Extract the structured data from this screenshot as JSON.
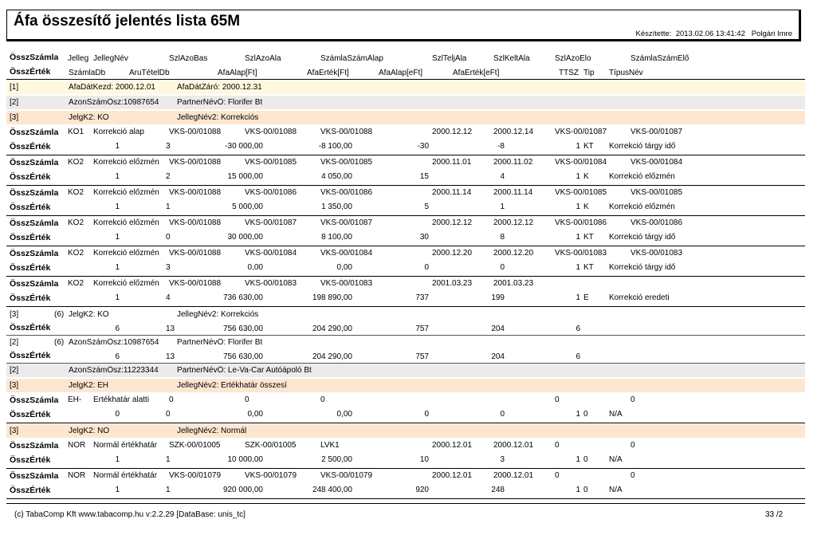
{
  "report": {
    "title": "Áfa összesítő jelentés lista 65M",
    "made_by_label": "Készítette:",
    "made_date": "2013.02.06 13:41:42",
    "made_user": "Polgári Imre"
  },
  "header_row1": {
    "label": "ÖsszSzámla",
    "cols": [
      "Jelleg",
      "JellegNév",
      "SzlAzoBas",
      "SzlAzoAla",
      "SzámlaSzámAlap",
      "SzlTeljAla",
      "SzlKeltAla",
      "SzlAzoElo",
      "SzámlaSzámElő"
    ]
  },
  "header_row2": {
    "label": "ÖsszÉrték",
    "cols": [
      "SzámlaDb",
      "ÁruTételDb",
      "ÁfaAlap[Ft]",
      "ÁfaÉrték[Ft]",
      "ÁfaAlap[eFt]",
      "ÁfaÉrték[eFt]",
      "TTSZ",
      "Tip",
      "TípusNév"
    ]
  },
  "rows": [
    {
      "type": "band",
      "style": "b1",
      "level": "[1]",
      "parts": [
        "ÁfaDátKezd: 2000.12.01",
        "ÁfaDátZáró: 2000.12.31"
      ]
    },
    {
      "type": "band",
      "style": "b2",
      "level": "[2]",
      "parts": [
        "AzonSzámÖsz:10987654",
        "PartnerNévÖ: Florifer Bt"
      ]
    },
    {
      "type": "band",
      "style": "b3",
      "level": "[3]",
      "parts": [
        "JelgK2:  KO",
        "JellegNév2:  Korrekciós"
      ]
    },
    {
      "type": "rec",
      "a": {
        "label": "ÖsszSzámla",
        "jelleg": "KO1",
        "nev": "Korrekció alap",
        "bas": "VKS-00/01088",
        "ala": "VKS-00/01088",
        "alap": "VKS-00/01088",
        "telj": "2000.12.12",
        "kelt": "2000.12.14",
        "elo": "VKS-00/01087",
        "szamelo": "VKS-00/01087"
      },
      "b": {
        "label": "ÖsszÉrték",
        "db": "1",
        "tdb": "3",
        "alapft": "-30 000,00",
        "ertft": "-8 100,00",
        "alapeft": "-30",
        "erteft": "-8",
        "ttsz": "1",
        "tip": "KT",
        "tipnev": "Korrekció tárgy idő"
      }
    },
    {
      "type": "rec",
      "a": {
        "label": "ÖsszSzámla",
        "jelleg": "KO2",
        "nev": "Korrekció előzmén",
        "bas": "VKS-00/01088",
        "ala": "VKS-00/01085",
        "alap": "VKS-00/01085",
        "telj": "2000.11.01",
        "kelt": "2000.11.02",
        "elo": "VKS-00/01084",
        "szamelo": "VKS-00/01084"
      },
      "b": {
        "label": "ÖsszÉrték",
        "db": "1",
        "tdb": "2",
        "alapft": "15 000,00",
        "ertft": "4 050,00",
        "alapeft": "15",
        "erteft": "4",
        "ttsz": "1",
        "tip": "K",
        "tipnev": "Korrekció előzmén"
      }
    },
    {
      "type": "rec",
      "a": {
        "label": "ÖsszSzámla",
        "jelleg": "KO2",
        "nev": "Korrekció előzmén",
        "bas": "VKS-00/01088",
        "ala": "VKS-00/01086",
        "alap": "VKS-00/01086",
        "telj": "2000.11.14",
        "kelt": "2000.11.14",
        "elo": "VKS-00/01085",
        "szamelo": "VKS-00/01085"
      },
      "b": {
        "label": "ÖsszÉrték",
        "db": "1",
        "tdb": "1",
        "alapft": "5 000,00",
        "ertft": "1 350,00",
        "alapeft": "5",
        "erteft": "1",
        "ttsz": "1",
        "tip": "K",
        "tipnev": "Korrekció előzmén"
      }
    },
    {
      "type": "rec",
      "a": {
        "label": "ÖsszSzámla",
        "jelleg": "KO2",
        "nev": "Korrekció előzmén",
        "bas": "VKS-00/01088",
        "ala": "VKS-00/01087",
        "alap": "VKS-00/01087",
        "telj": "2000.12.12",
        "kelt": "2000.12.12",
        "elo": "VKS-00/01086",
        "szamelo": "VKS-00/01086"
      },
      "b": {
        "label": "ÖsszÉrték",
        "db": "1",
        "tdb": "0",
        "alapft": "30 000,00",
        "ertft": "8 100,00",
        "alapeft": "30",
        "erteft": "8",
        "ttsz": "1",
        "tip": "KT",
        "tipnev": "Korrekció tárgy idő"
      }
    },
    {
      "type": "rec",
      "a": {
        "label": "ÖsszSzámla",
        "jelleg": "KO2",
        "nev": "Korrekció előzmén",
        "bas": "VKS-00/01088",
        "ala": "VKS-00/01084",
        "alap": "VKS-00/01084",
        "telj": "2000.12.20",
        "kelt": "2000.12.20",
        "elo": "VKS-00/01083",
        "szamelo": "VKS-00/01083"
      },
      "b": {
        "label": "ÖsszÉrték",
        "db": "1",
        "tdb": "3",
        "alapft": "0,00",
        "ertft": "0,00",
        "alapeft": "0",
        "erteft": "0",
        "ttsz": "1",
        "tip": "KT",
        "tipnev": "Korrekció tárgy idő"
      }
    },
    {
      "type": "rec",
      "a": {
        "label": "ÖsszSzámla",
        "jelleg": "KO2",
        "nev": "Korrekció előzmén",
        "bas": "VKS-00/01088",
        "ala": "VKS-00/01083",
        "alap": "VKS-00/01083",
        "telj": "2001.03.23",
        "kelt": "2001.03.23",
        "elo": "",
        "szamelo": ""
      },
      "b": {
        "label": "ÖsszÉrték",
        "db": "1",
        "tdb": "4",
        "alapft": "736 630,00",
        "ertft": "198 890,00",
        "alapeft": "737",
        "erteft": "199",
        "ttsz": "1",
        "tip": "E",
        "tipnev": "Korrekció eredeti"
      }
    },
    {
      "type": "sum",
      "level": "[3]",
      "count": "(6)",
      "parts": [
        "JelgK2:  KO",
        "JellegNév2:  Korrekciós"
      ],
      "b": {
        "label": "ÖsszÉrték",
        "db": "6",
        "tdb": "13",
        "alapft": "756 630,00",
        "ertft": "204 290,00",
        "alapeft": "757",
        "erteft": "204",
        "ttsz": "6"
      }
    },
    {
      "type": "sum",
      "level": "[2]",
      "count": "(6)",
      "parts": [
        "AzonSzámÖsz:10987654",
        "PartnerNévÖ: Florifer Bt"
      ],
      "b": {
        "label": "ÖsszÉrték",
        "db": "6",
        "tdb": "13",
        "alapft": "756 630,00",
        "ertft": "204 290,00",
        "alapeft": "757",
        "erteft": "204",
        "ttsz": "6"
      }
    },
    {
      "type": "band",
      "style": "b2",
      "level": "[2]",
      "parts": [
        "AzonSzámÖsz:11223344",
        "PartnerNévÖ: Le-Va-Car Autóápoló Bt"
      ]
    },
    {
      "type": "band",
      "style": "b3",
      "level": "[3]",
      "parts": [
        "JelgK2:  EH",
        "JellegNév2:  Értékhatár összesí"
      ]
    },
    {
      "type": "rec",
      "a": {
        "label": "ÖsszSzámla",
        "jelleg": "EH-",
        "nev": "Értékhatár alatti",
        "bas": "0",
        "ala": "0",
        "alap": "0",
        "telj": "",
        "kelt": "",
        "elo": "0",
        "szamelo": "0"
      },
      "b": {
        "label": "ÖsszÉrték",
        "db": "0",
        "tdb": "0",
        "alapft": "0,00",
        "ertft": "0,00",
        "alapeft": "0",
        "erteft": "0",
        "ttsz": "1",
        "tip": "0",
        "tipnev": "N/A"
      }
    },
    {
      "type": "band",
      "style": "b3",
      "level": "[3]",
      "parts": [
        "JelgK2:  NO",
        "JellegNév2:  Normál"
      ]
    },
    {
      "type": "rec",
      "a": {
        "label": "ÖsszSzámla",
        "jelleg": "NOR",
        "nev": "Normál értékhatár",
        "bas": "SZK-00/01005",
        "ala": "SZK-00/01005",
        "alap": "LVK1",
        "telj": "2000.12.01",
        "kelt": "2000.12.01",
        "elo": "0",
        "szamelo": "0"
      },
      "b": {
        "label": "ÖsszÉrték",
        "db": "1",
        "tdb": "1",
        "alapft": "10 000,00",
        "ertft": "2 500,00",
        "alapeft": "10",
        "erteft": "3",
        "ttsz": "1",
        "tip": "0",
        "tipnev": "N/A"
      }
    },
    {
      "type": "rec",
      "a": {
        "label": "ÖsszSzámla",
        "jelleg": "NOR",
        "nev": "Normál értékhatár",
        "bas": "VKS-00/01079",
        "ala": "VKS-00/01079",
        "alap": "VKS-00/01079",
        "telj": "2000.12.01",
        "kelt": "2000.12.01",
        "elo": "0",
        "szamelo": "0"
      },
      "b": {
        "label": "ÖsszÉrték",
        "db": "1",
        "tdb": "1",
        "alapft": "920 000,00",
        "ertft": "248 400,00",
        "alapeft": "920",
        "erteft": "248",
        "ttsz": "1",
        "tip": "0",
        "tipnev": "N/A"
      }
    }
  ],
  "footer": {
    "text": "(c) TabaComp Kft  www.tabacomp.hu  v:2.2.29 [DataBase: unis_tc]",
    "page": "33  /2"
  }
}
